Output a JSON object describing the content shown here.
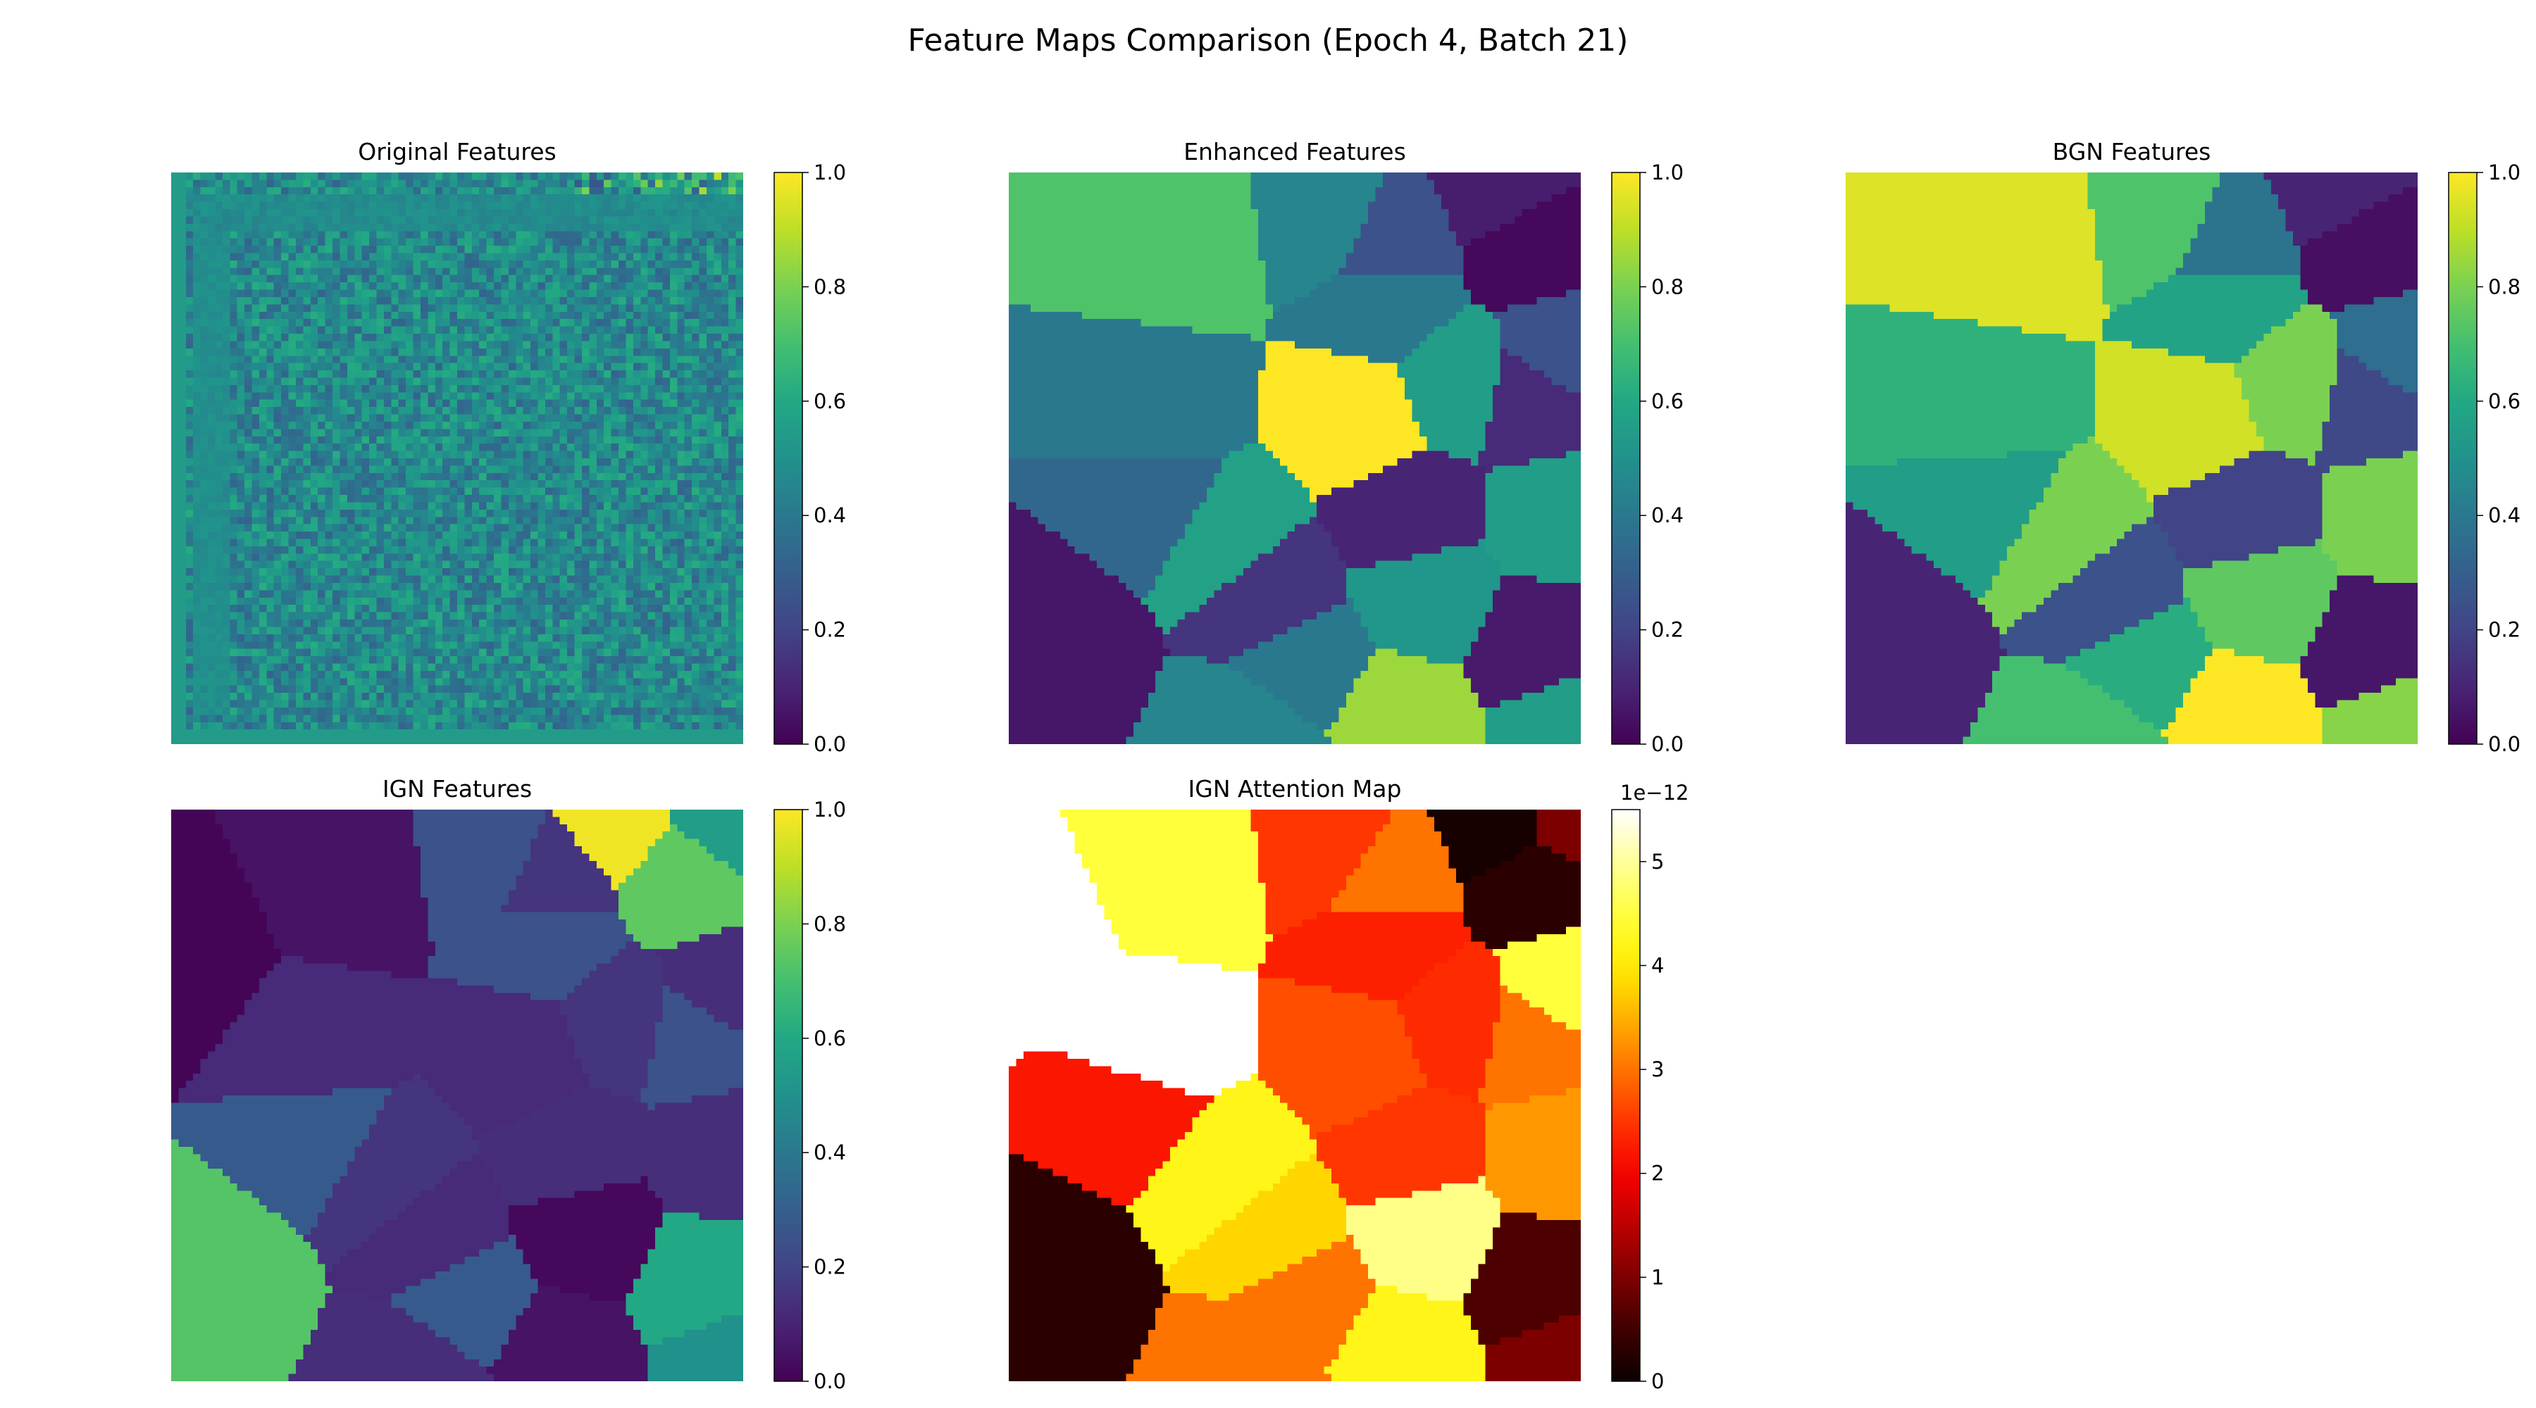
{
  "figure": {
    "title": "Feature Maps Comparison (Epoch 4, Batch 21)"
  },
  "colors": {
    "viridis": [
      "#440154",
      "#482475",
      "#414487",
      "#355f8d",
      "#2a788e",
      "#21918c",
      "#22a884",
      "#44bf70",
      "#7ad151",
      "#bddf26",
      "#fde725"
    ],
    "hot": [
      "#0b0000",
      "#400000",
      "#7d0000",
      "#bb0000",
      "#f80000",
      "#ff3600",
      "#ff7300",
      "#ffb100",
      "#ffee00",
      "#ffff3c",
      "#ffff9a",
      "#ffffff"
    ]
  },
  "chart_data": [
    {
      "type": "heatmap",
      "title": "Original Features",
      "colormap": "viridis",
      "texture": "noise",
      "base_value": 0.47,
      "noise_amplitude": 0.3,
      "colorbar": {
        "min": 0.0,
        "max": 1.0,
        "ticks": [
          "0.0",
          "0.2",
          "0.4",
          "0.6",
          "0.8",
          "1.0"
        ],
        "multiplier": ""
      }
    },
    {
      "type": "heatmap",
      "title": "Enhanced Features",
      "colormap": "viridis",
      "texture": "regions",
      "regions": [
        {
          "x": 0.07,
          "y": 0.82,
          "v": 0.06
        },
        {
          "x": 0.26,
          "y": 0.42,
          "v": 0.4
        },
        {
          "x": 0.3,
          "y": 0.12,
          "v": 0.72
        },
        {
          "x": 0.57,
          "y": 0.08,
          "v": 0.45
        },
        {
          "x": 0.66,
          "y": 0.12,
          "v": 0.25
        },
        {
          "x": 0.87,
          "y": 0.03,
          "v": 0.08
        },
        {
          "x": 0.92,
          "y": 0.12,
          "v": 0.02
        },
        {
          "x": 0.97,
          "y": 0.32,
          "v": 0.25
        },
        {
          "x": 0.66,
          "y": 0.23,
          "v": 0.4
        },
        {
          "x": 0.26,
          "y": 0.57,
          "v": 0.33
        },
        {
          "x": 0.38,
          "y": 0.64,
          "v": 0.57
        },
        {
          "x": 0.62,
          "y": 0.43,
          "v": 1.0
        },
        {
          "x": 0.78,
          "y": 0.37,
          "v": 0.55
        },
        {
          "x": 0.92,
          "y": 0.4,
          "v": 0.12
        },
        {
          "x": 0.46,
          "y": 0.74,
          "v": 0.15
        },
        {
          "x": 0.7,
          "y": 0.6,
          "v": 0.1
        },
        {
          "x": 0.96,
          "y": 0.6,
          "v": 0.55
        },
        {
          "x": 0.52,
          "y": 0.86,
          "v": 0.4
        },
        {
          "x": 0.73,
          "y": 0.74,
          "v": 0.52
        },
        {
          "x": 0.93,
          "y": 0.83,
          "v": 0.07
        },
        {
          "x": 0.43,
          "y": 0.99,
          "v": 0.45
        },
        {
          "x": 0.68,
          "y": 0.95,
          "v": 0.85
        },
        {
          "x": 0.98,
          "y": 0.96,
          "v": 0.55
        }
      ],
      "colorbar": {
        "min": 0.0,
        "max": 1.0,
        "ticks": [
          "0.0",
          "0.2",
          "0.4",
          "0.6",
          "0.8",
          "1.0"
        ],
        "multiplier": ""
      }
    },
    {
      "type": "heatmap",
      "title": "BGN Features",
      "colormap": "viridis",
      "texture": "regions",
      "regions": [
        {
          "x": 0.07,
          "y": 0.82,
          "v": 0.1
        },
        {
          "x": 0.25,
          "y": 0.42,
          "v": 0.64
        },
        {
          "x": 0.3,
          "y": 0.12,
          "v": 0.95
        },
        {
          "x": 0.57,
          "y": 0.08,
          "v": 0.72
        },
        {
          "x": 0.66,
          "y": 0.12,
          "v": 0.38
        },
        {
          "x": 0.87,
          "y": 0.03,
          "v": 0.1
        },
        {
          "x": 0.92,
          "y": 0.12,
          "v": 0.04
        },
        {
          "x": 0.97,
          "y": 0.32,
          "v": 0.36
        },
        {
          "x": 0.66,
          "y": 0.23,
          "v": 0.58
        },
        {
          "x": 0.26,
          "y": 0.57,
          "v": 0.55
        },
        {
          "x": 0.38,
          "y": 0.64,
          "v": 0.8
        },
        {
          "x": 0.62,
          "y": 0.43,
          "v": 0.93
        },
        {
          "x": 0.78,
          "y": 0.37,
          "v": 0.8
        },
        {
          "x": 0.92,
          "y": 0.4,
          "v": 0.22
        },
        {
          "x": 0.46,
          "y": 0.74,
          "v": 0.25
        },
        {
          "x": 0.7,
          "y": 0.6,
          "v": 0.2
        },
        {
          "x": 0.96,
          "y": 0.6,
          "v": 0.8
        },
        {
          "x": 0.52,
          "y": 0.86,
          "v": 0.62
        },
        {
          "x": 0.73,
          "y": 0.74,
          "v": 0.75
        },
        {
          "x": 0.93,
          "y": 0.83,
          "v": 0.06
        },
        {
          "x": 0.43,
          "y": 0.99,
          "v": 0.7
        },
        {
          "x": 0.68,
          "y": 0.95,
          "v": 1.0
        },
        {
          "x": 0.98,
          "y": 0.96,
          "v": 0.82
        }
      ],
      "colorbar": {
        "min": 0.0,
        "max": 1.0,
        "ticks": [
          "0.0",
          "0.2",
          "0.4",
          "0.6",
          "0.8",
          "1.0"
        ],
        "multiplier": ""
      }
    },
    {
      "type": "heatmap",
      "title": "IGN Features",
      "colormap": "viridis",
      "texture": "regions",
      "regions": [
        {
          "x": 0.07,
          "y": 0.82,
          "v": 0.73
        },
        {
          "x": 0.25,
          "y": 0.42,
          "v": 0.12
        },
        {
          "x": 0.3,
          "y": 0.12,
          "v": 0.05
        },
        {
          "x": 0.02,
          "y": 0.25,
          "v": 0.01
        },
        {
          "x": 0.57,
          "y": 0.08,
          "v": 0.25
        },
        {
          "x": 0.66,
          "y": 0.12,
          "v": 0.15
        },
        {
          "x": 0.78,
          "y": 0.02,
          "v": 0.98
        },
        {
          "x": 0.9,
          "y": 0.12,
          "v": 0.75
        },
        {
          "x": 0.97,
          "y": 0.02,
          "v": 0.55
        },
        {
          "x": 0.97,
          "y": 0.32,
          "v": 0.13
        },
        {
          "x": 0.66,
          "y": 0.23,
          "v": 0.25
        },
        {
          "x": 0.26,
          "y": 0.57,
          "v": 0.28
        },
        {
          "x": 0.38,
          "y": 0.64,
          "v": 0.15
        },
        {
          "x": 0.62,
          "y": 0.43,
          "v": 0.12
        },
        {
          "x": 0.78,
          "y": 0.37,
          "v": 0.15
        },
        {
          "x": 0.92,
          "y": 0.4,
          "v": 0.25
        },
        {
          "x": 0.46,
          "y": 0.74,
          "v": 0.12
        },
        {
          "x": 0.7,
          "y": 0.6,
          "v": 0.13
        },
        {
          "x": 0.96,
          "y": 0.6,
          "v": 0.13
        },
        {
          "x": 0.52,
          "y": 0.86,
          "v": 0.28
        },
        {
          "x": 0.73,
          "y": 0.74,
          "v": 0.02
        },
        {
          "x": 0.93,
          "y": 0.83,
          "v": 0.6
        },
        {
          "x": 0.43,
          "y": 0.99,
          "v": 0.13
        },
        {
          "x": 0.68,
          "y": 0.95,
          "v": 0.05
        },
        {
          "x": 0.98,
          "y": 0.96,
          "v": 0.5
        }
      ],
      "colorbar": {
        "min": 0.0,
        "max": 1.0,
        "ticks": [
          "0.0",
          "0.2",
          "0.4",
          "0.6",
          "0.8",
          "1.0"
        ],
        "multiplier": ""
      }
    },
    {
      "type": "heatmap",
      "title": "IGN Attention Map",
      "colormap": "hot",
      "texture": "regions",
      "regions": [
        {
          "x": 0.07,
          "y": 0.82,
          "v": 0.3
        },
        {
          "x": 0.25,
          "y": 0.42,
          "v": 5.5
        },
        {
          "x": 0.02,
          "y": 0.22,
          "v": 5.5
        },
        {
          "x": 0.3,
          "y": 0.1,
          "v": 4.5
        },
        {
          "x": 0.57,
          "y": 0.06,
          "v": 2.5
        },
        {
          "x": 0.66,
          "y": 0.12,
          "v": 3.0
        },
        {
          "x": 0.87,
          "y": 0.03,
          "v": 0.1
        },
        {
          "x": 0.92,
          "y": 0.12,
          "v": 0.3
        },
        {
          "x": 0.98,
          "y": 0.02,
          "v": 1.0
        },
        {
          "x": 0.97,
          "y": 0.32,
          "v": 4.5
        },
        {
          "x": 0.66,
          "y": 0.23,
          "v": 2.3
        },
        {
          "x": 0.22,
          "y": 0.52,
          "v": 2.2
        },
        {
          "x": 0.38,
          "y": 0.64,
          "v": 4.2
        },
        {
          "x": 0.62,
          "y": 0.43,
          "v": 2.7
        },
        {
          "x": 0.78,
          "y": 0.37,
          "v": 2.4
        },
        {
          "x": 0.92,
          "y": 0.4,
          "v": 3.0
        },
        {
          "x": 0.46,
          "y": 0.74,
          "v": 3.8
        },
        {
          "x": 0.7,
          "y": 0.6,
          "v": 2.5
        },
        {
          "x": 0.96,
          "y": 0.6,
          "v": 3.3
        },
        {
          "x": 0.52,
          "y": 0.86,
          "v": 3.0
        },
        {
          "x": 0.73,
          "y": 0.74,
          "v": 4.9
        },
        {
          "x": 0.93,
          "y": 0.83,
          "v": 0.6
        },
        {
          "x": 0.43,
          "y": 0.99,
          "v": 3.0
        },
        {
          "x": 0.68,
          "y": 0.95,
          "v": 4.2
        },
        {
          "x": 0.98,
          "y": 0.96,
          "v": 1.0
        }
      ],
      "colorbar": {
        "min": 0.0,
        "max": 5.5,
        "ticks": [
          "0",
          "1",
          "2",
          "3",
          "4",
          "5"
        ],
        "multiplier": "1e−12"
      }
    }
  ]
}
